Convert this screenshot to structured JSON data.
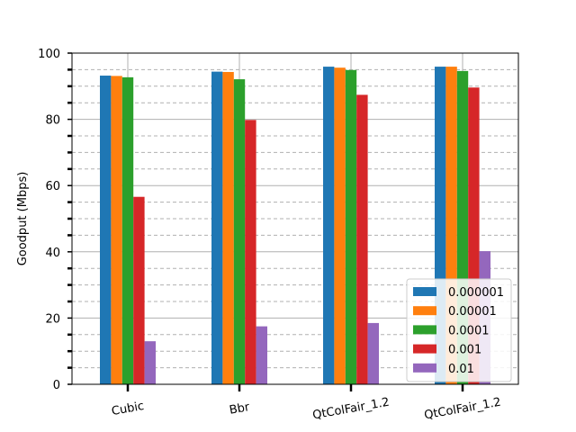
{
  "chart_data": {
    "type": "bar",
    "title": "",
    "xlabel": "",
    "ylabel": "Goodput (Mbps)",
    "ylim": [
      0,
      100
    ],
    "yticks": [
      0,
      20,
      40,
      60,
      80,
      100
    ],
    "categories": [
      "Cubic",
      "Bbr",
      "QtColFair_1.2",
      "QtColFair_1.2"
    ],
    "series": [
      {
        "name": "0.000001",
        "color": "#1f77b4",
        "values": [
          93.2,
          94.4,
          95.9,
          95.9
        ]
      },
      {
        "name": "0.00001",
        "color": "#ff7f0e",
        "values": [
          93.1,
          94.3,
          95.6,
          95.9
        ]
      },
      {
        "name": "0.0001",
        "color": "#2ca02c",
        "values": [
          92.7,
          92.1,
          94.9,
          94.6
        ]
      },
      {
        "name": "0.001",
        "color": "#d62728",
        "values": [
          56.6,
          79.8,
          87.4,
          89.6
        ]
      },
      {
        "name": "0.01",
        "color": "#9467bd",
        "values": [
          13.0,
          17.5,
          18.5,
          40.2
        ]
      }
    ],
    "grid": true,
    "legend_position": "lower-right"
  }
}
